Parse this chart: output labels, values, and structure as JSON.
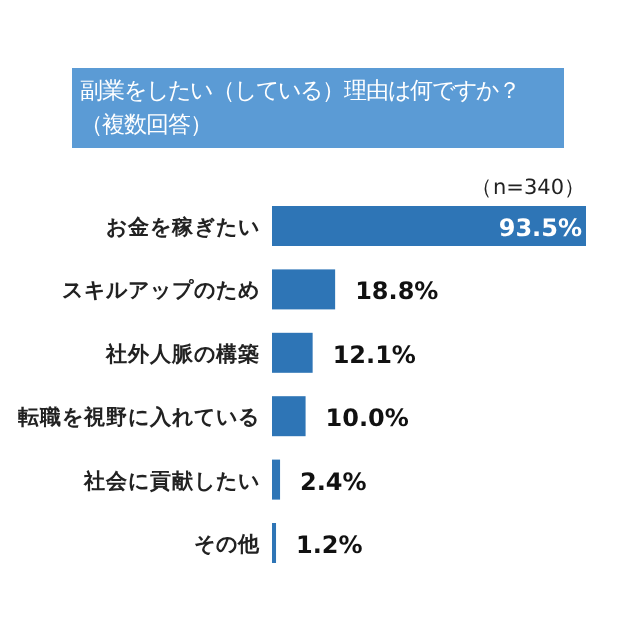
{
  "chart_data": {
    "type": "bar",
    "orientation": "horizontal",
    "title": "副業をしたい（している）理由は何ですか？（複数回答）",
    "annotations": [
      "（n=340）"
    ],
    "categories": [
      "お金を稼ぎたい",
      "スキルアップのため",
      "社外人脈の構築",
      "転職を視野に入れている",
      "社会に貢献したい",
      "その他"
    ],
    "values": [
      93.5,
      18.8,
      12.1,
      10.0,
      2.4,
      1.2
    ],
    "value_labels": [
      "93.5%",
      "18.8%",
      "12.1%",
      "10.0%",
      "2.4%",
      "1.2%"
    ],
    "color": "#2e75b6"
  }
}
